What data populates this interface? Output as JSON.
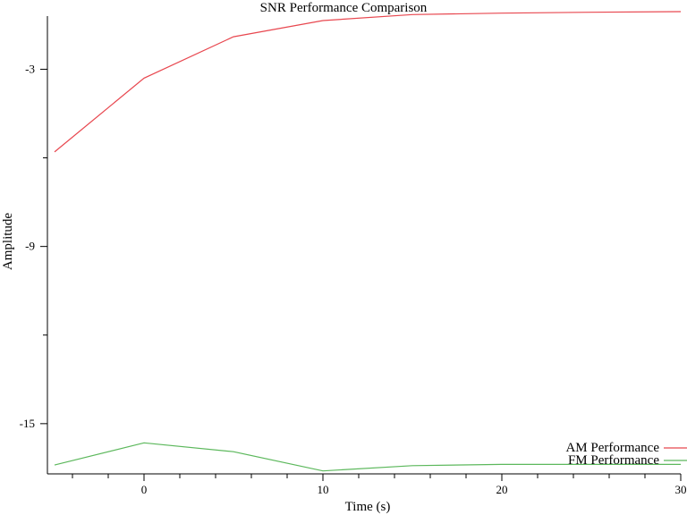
{
  "chart_data": {
    "type": "line",
    "title": "SNR Performance Comparison",
    "xlabel": "Time (s)",
    "ylabel": "Amplitude",
    "xlim": [
      -5,
      30
    ],
    "ylim": [
      -16.7,
      -1.2
    ],
    "x_ticks": [
      0,
      10,
      20,
      30
    ],
    "x_tick_labels": [
      "0",
      "10",
      "20",
      "30"
    ],
    "x_minor_ticks": [
      -4,
      -2,
      2,
      4,
      6,
      8,
      12,
      14,
      16,
      18,
      22,
      24,
      26,
      28
    ],
    "y_ticks": [
      -3,
      -9,
      -15
    ],
    "y_tick_labels": [
      "-3",
      "-9",
      "-15"
    ],
    "y_minor_ticks": [
      -6,
      -12
    ],
    "grid": false,
    "legend_position": "bottom-right",
    "series": [
      {
        "name": "AM Performance",
        "color": "#e8474f",
        "x": [
          -5,
          0,
          5,
          10,
          15,
          20,
          25,
          30
        ],
        "y": [
          -5.8,
          -3.3,
          -1.9,
          -1.35,
          -1.15,
          -1.1,
          -1.07,
          -1.05
        ]
      },
      {
        "name": "FM Performance",
        "color": "#5cb85c",
        "x": [
          -5,
          0,
          5,
          10,
          15,
          20,
          25,
          30
        ],
        "y": [
          -16.4,
          -15.65,
          -15.95,
          -16.6,
          -16.42,
          -16.38,
          -16.38,
          -16.38
        ]
      }
    ]
  }
}
